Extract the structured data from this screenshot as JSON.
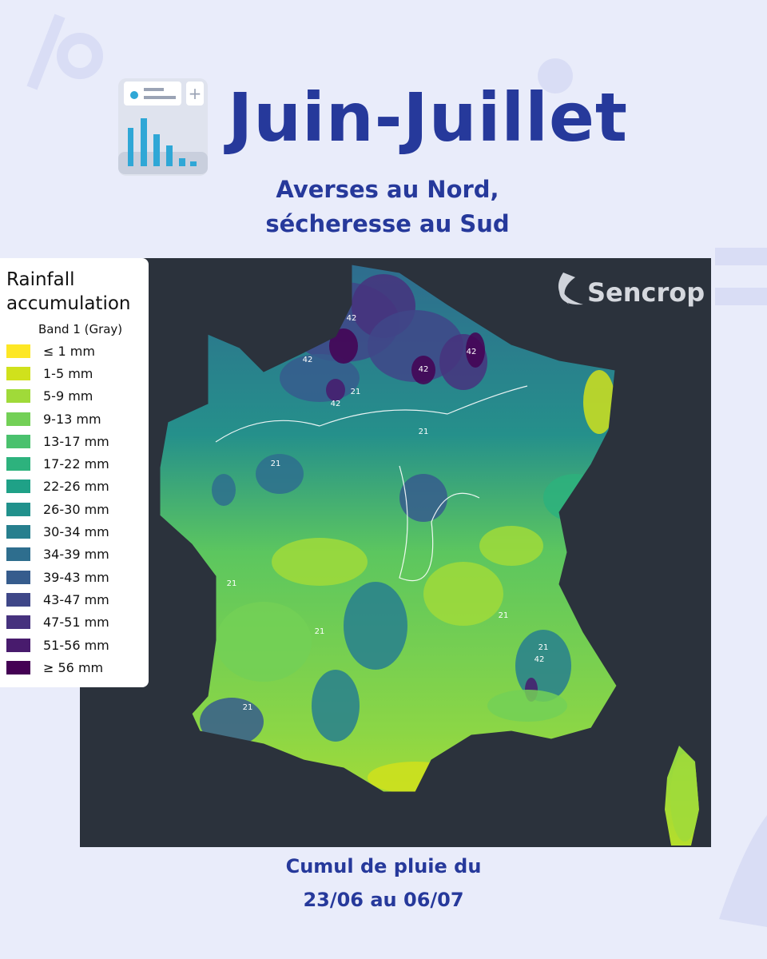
{
  "header": {
    "title": "Juin-Juillet",
    "subtitle": [
      "Averses au Nord,",
      "sécheresse au Sud"
    ]
  },
  "map": {
    "watermark": "Sencrop",
    "contour_levels": [
      21,
      42
    ],
    "legend": {
      "title": "Rainfall accumulation",
      "band": "Band 1 (Gray)",
      "items": [
        {
          "label": "≤ 1 mm",
          "color": "#fde725"
        },
        {
          "label": "1-5 mm",
          "color": "#d0e11c"
        },
        {
          "label": "5-9 mm",
          "color": "#a0da39"
        },
        {
          "label": "9-13 mm",
          "color": "#73d056"
        },
        {
          "label": "13-17 mm",
          "color": "#4ac16d"
        },
        {
          "label": "17-22 mm",
          "color": "#2db27d"
        },
        {
          "label": "22-26 mm",
          "color": "#1fa187"
        },
        {
          "label": "26-30 mm",
          "color": "#21918c"
        },
        {
          "label": "30-34 mm",
          "color": "#277f8e"
        },
        {
          "label": "34-39 mm",
          "color": "#2e6e8e"
        },
        {
          "label": "39-43 mm",
          "color": "#365c8d"
        },
        {
          "label": "43-47 mm",
          "color": "#3f4788"
        },
        {
          "label": "47-51 mm",
          "color": "#46327e"
        },
        {
          "label": "51-56 mm",
          "color": "#481b6d"
        },
        {
          "label": "≥ 56 mm",
          "color": "#440154"
        }
      ]
    }
  },
  "footer": [
    "Cumul de pluie du",
    "23/06 au 06/07"
  ]
}
